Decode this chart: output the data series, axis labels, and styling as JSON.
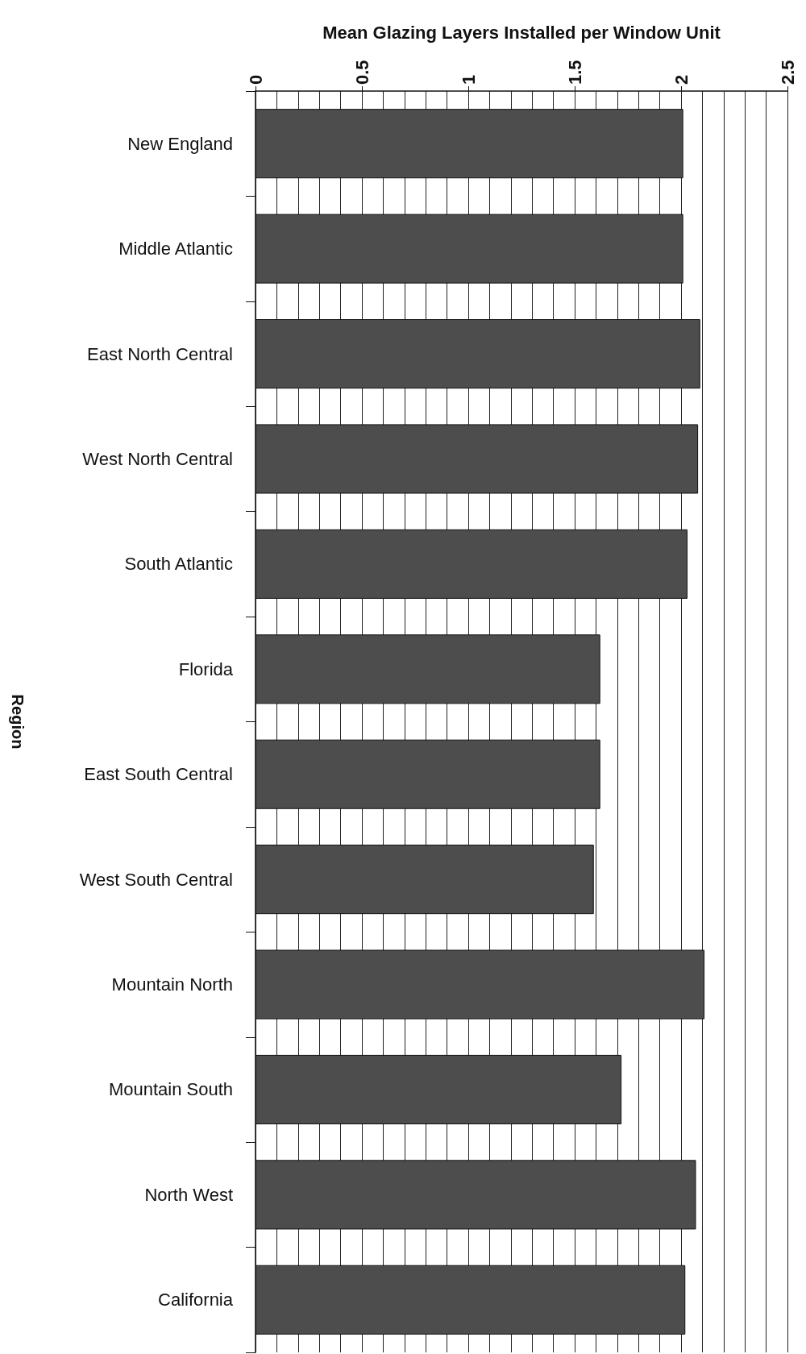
{
  "chart_data": {
    "type": "bar",
    "orientation": "horizontal",
    "xlabel": "Mean Glazing Layers Installed per Window Unit",
    "ylabel": "Region",
    "categories": [
      "New England",
      "Middle Atlantic",
      "East North Central",
      "West North Central",
      "South Atlantic",
      "Florida",
      "East South Central",
      "West South Central",
      "Mountain North",
      "Mountain South",
      "North West",
      "California"
    ],
    "values": [
      2.01,
      2.01,
      2.09,
      2.08,
      2.03,
      1.62,
      1.62,
      1.59,
      2.11,
      1.72,
      2.07,
      2.02
    ],
    "color": "#4d4d4d",
    "xlim": [
      0,
      2.5
    ],
    "xticks": [
      0,
      0.5,
      1,
      1.5,
      2,
      2.5
    ],
    "grid": "x"
  }
}
